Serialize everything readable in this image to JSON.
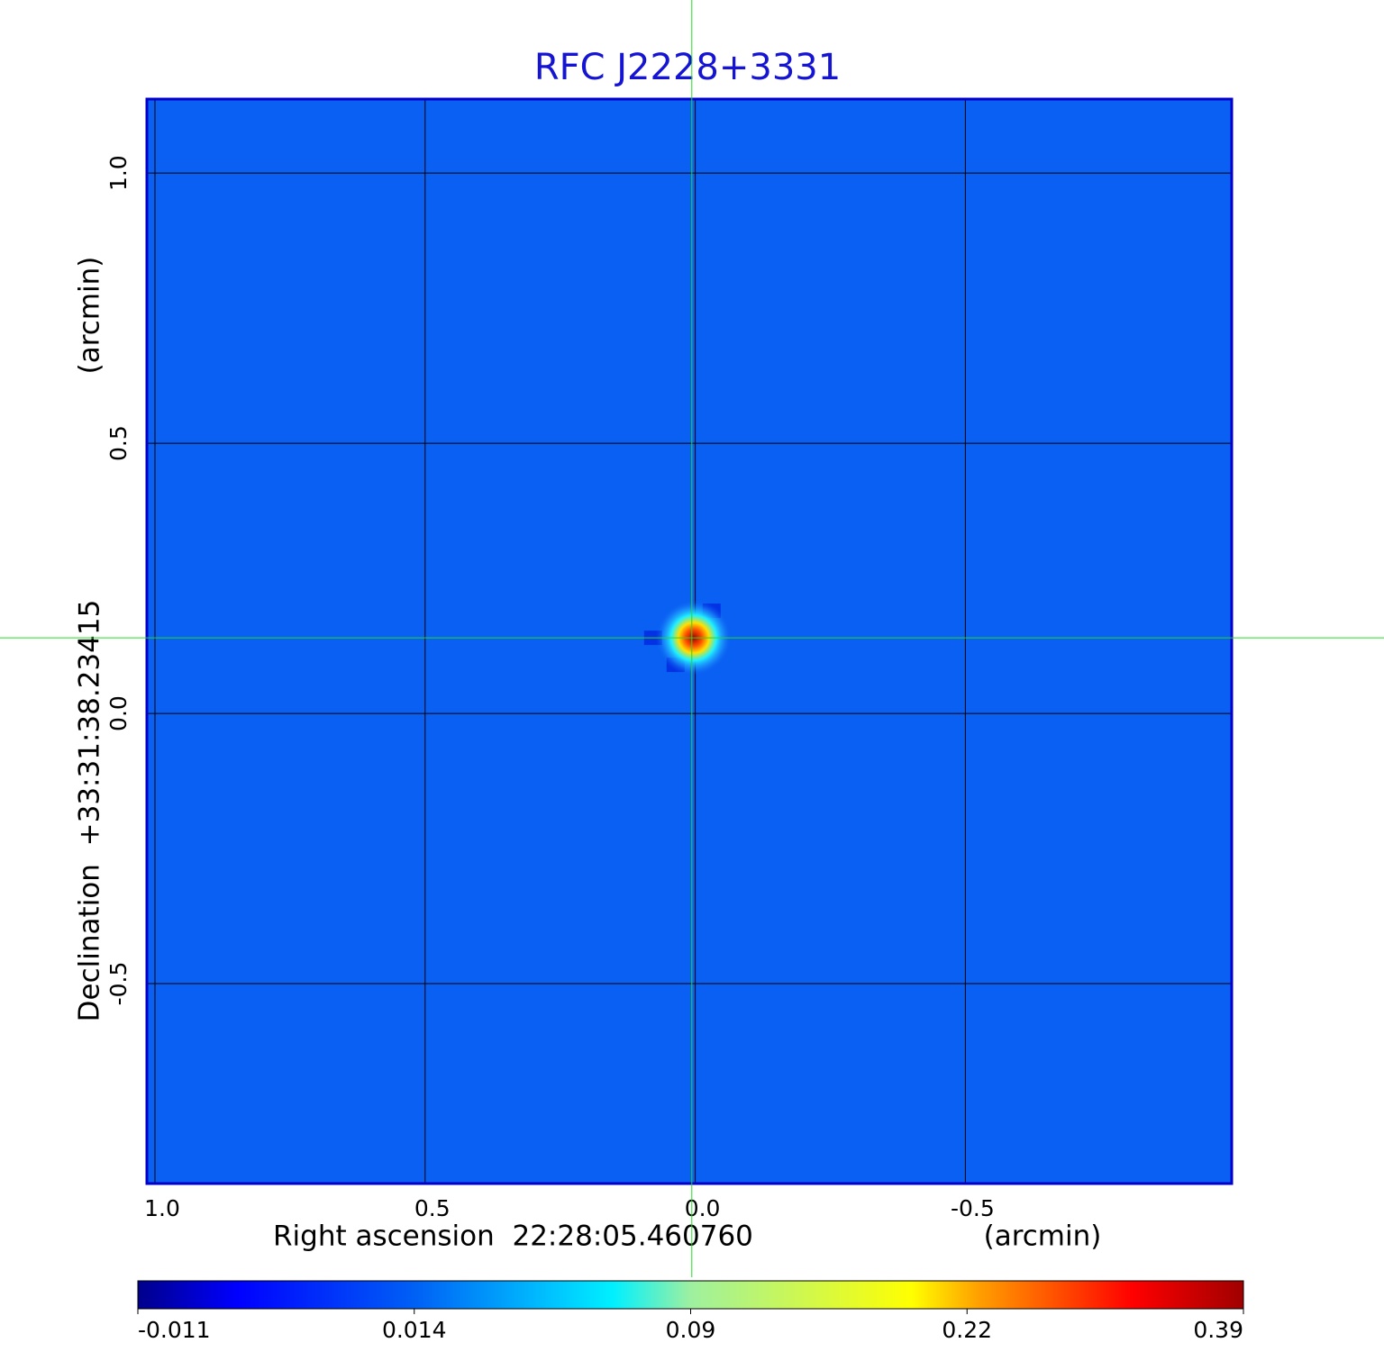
{
  "chart_data": {
    "type": "image",
    "title": "RFC J2228+3331",
    "x_label": "Right ascension  22:28:05.460760",
    "x_unit": "(arcmin)",
    "y_label": "Declination  +33:31:38.23415",
    "y_unit": "(arcmin)",
    "xlim": [
      1.015,
      -0.993
    ],
    "ylim": [
      -0.87,
      1.137
    ],
    "xticks": [
      {
        "value": 1,
        "label": "1.0"
      },
      0.5,
      {
        "value": 0,
        "label": "0.0"
      },
      -0.5
    ],
    "yticks": [
      -0.5,
      {
        "value": 0,
        "label": "0.0"
      },
      0.5,
      {
        "value": 1,
        "label": "1.0"
      }
    ],
    "grid": true,
    "source": {
      "x": 0.003,
      "y": 0.14
    },
    "colorbar": {
      "lim": [
        -0.011,
        0.39
      ],
      "ticks": [
        -0.011,
        0.014,
        0.09,
        0.22,
        0.39
      ]
    }
  }
}
